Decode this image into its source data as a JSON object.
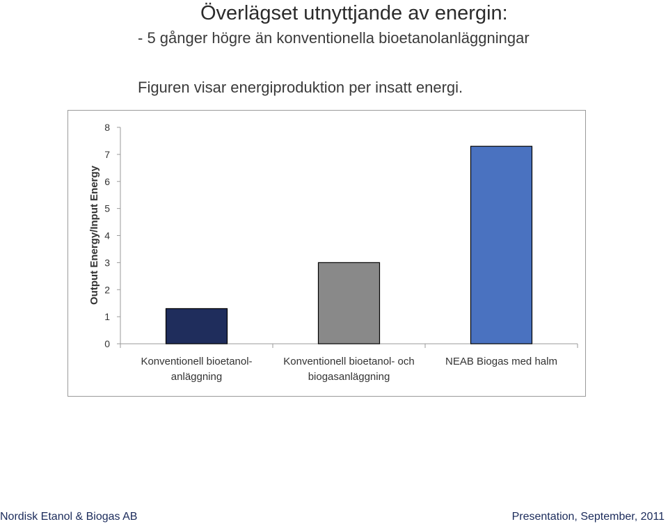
{
  "header": {
    "title": "Överlägset utnyttjande av energin:",
    "subtitle": "- 5 gånger högre än konventionella bioetanolanläggningar",
    "caption": "Figuren visar energiproduktion per insatt energi."
  },
  "chart_data": {
    "type": "bar",
    "categories": [
      [
        "Konventionell bioetanol-",
        "anläggning"
      ],
      [
        "Konventionell bioetanol- och",
        "biogasanläggning"
      ],
      [
        "NEAB Biogas med halm"
      ]
    ],
    "values": [
      1.3,
      3.0,
      7.3
    ],
    "colors": [
      "#1f2d5c",
      "#898989",
      "#4a72c0"
    ],
    "ylabel": "Output Energy/Input Energy",
    "ylim": [
      0,
      8
    ],
    "yticks": [
      0,
      1,
      2,
      3,
      4,
      5,
      6,
      7,
      8
    ],
    "grid": false,
    "legend": "none"
  },
  "footer": {
    "left": "Nordisk Etanol & Biogas AB",
    "right": "Presentation, September, 2011"
  }
}
